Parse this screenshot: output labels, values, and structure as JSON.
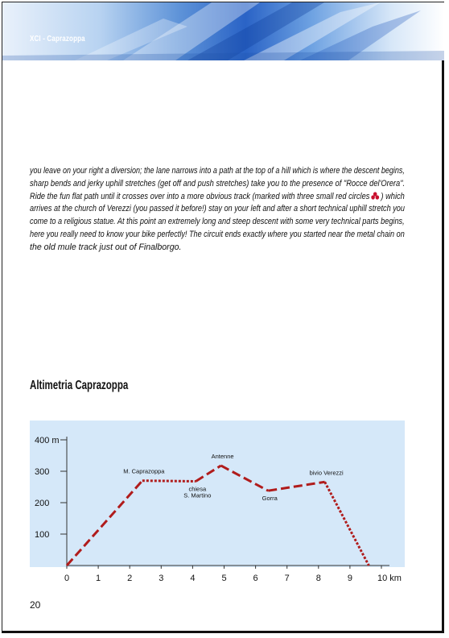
{
  "header": {
    "label": "XCI - Caprazoppa"
  },
  "body": {
    "lines": [
      "you leave on your right a diversion; the lane narrows into a path at the top of a hill which is where the descent begins,",
      "sharp bends and jerky uphill stretches (get off and push stretches) take you to the presence of \"Rocce del'Orera\".",
      "Ride the fun flat path until it crosses over into a more obvious track (marked with three small red circles",
      ") which",
      "arrives at the church of Verezzi (you passed it before!) stay on your left and after a short technical uphill stretch you",
      "come to a religious statue. At this point an extremely long and steep descent with some very technical parts begins,",
      "here you really need to know your bike perfectly! The circuit ends exactly where you started near the metal chain on",
      "the old mule track just out of Finalborgo."
    ],
    "marker_color": "#c8102e"
  },
  "section_title": "Altimetria Caprazoppa",
  "chart_data": {
    "type": "line",
    "x_unit": "km",
    "y_unit": "m",
    "xlim": [
      0,
      10
    ],
    "ylim": [
      0,
      400
    ],
    "x_ticks": [
      "0",
      "1",
      "2",
      "3",
      "4",
      "5",
      "6",
      "7",
      "8",
      "9",
      "10 km"
    ],
    "y_ticks": [
      "100",
      "200",
      "300",
      "400 m"
    ],
    "y_tick_values": [
      100,
      200,
      300,
      400
    ],
    "series_color": "#b01c1c",
    "background": "#d5e8f9",
    "segments": [
      {
        "style": "dashed",
        "points": [
          [
            0,
            0
          ],
          [
            2.4,
            270
          ]
        ]
      },
      {
        "style": "dotted",
        "points": [
          [
            2.4,
            270
          ],
          [
            4.1,
            268
          ]
        ]
      },
      {
        "style": "dashed",
        "points": [
          [
            4.1,
            268
          ],
          [
            4.9,
            318
          ]
        ]
      },
      {
        "style": "dashed",
        "points": [
          [
            4.9,
            318
          ],
          [
            6.4,
            238
          ]
        ]
      },
      {
        "style": "dashed",
        "points": [
          [
            6.4,
            238
          ],
          [
            8.2,
            266
          ]
        ]
      },
      {
        "style": "dotted",
        "points": [
          [
            8.2,
            266
          ],
          [
            9.6,
            0
          ]
        ]
      }
    ],
    "annotations": [
      {
        "lines": [
          "M. Caprazoppa"
        ],
        "x": 2.4,
        "y": 270,
        "placement": "above"
      },
      {
        "lines": [
          "chiesa",
          "S. Martino"
        ],
        "x": 4.1,
        "y": 268,
        "placement": "below"
      },
      {
        "lines": [
          "Antenne"
        ],
        "x": 4.9,
        "y": 318,
        "placement": "above"
      },
      {
        "lines": [
          "Gorra"
        ],
        "x": 6.4,
        "y": 238,
        "placement": "below"
      },
      {
        "lines": [
          "bivio Verezzi"
        ],
        "x": 8.2,
        "y": 266,
        "placement": "above"
      }
    ]
  },
  "page_number": "20"
}
